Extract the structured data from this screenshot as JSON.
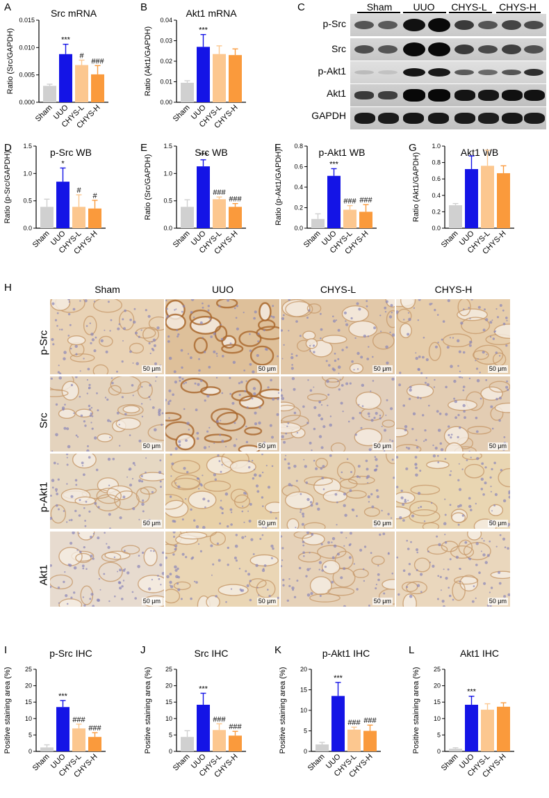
{
  "colors": {
    "Sham": "#d0d0d0",
    "UUO": "#1414e6",
    "CHYS-L": "#fcc78f",
    "CHYS-H": "#fa9a3c"
  },
  "panels": {
    "A": "A",
    "B": "B",
    "C": "C",
    "D": "D",
    "E": "E",
    "F": "F",
    "G": "G",
    "H": "H",
    "I": "I",
    "J": "J",
    "K": "K",
    "L": "L"
  },
  "blot": {
    "groups": [
      "Sham",
      "UUO",
      "CHYS-L",
      "CHYS-H"
    ],
    "rows": [
      "p-Src",
      "Src",
      "p-Akt1",
      "Akt1",
      "GAPDH"
    ]
  },
  "ihc": {
    "columns": [
      "Sham",
      "UUO",
      "CHYS-L",
      "CHYS-H"
    ],
    "rows": [
      "p-Src",
      "Src",
      "p-Akt1",
      "Akt1"
    ],
    "scale_label": "50 μm"
  },
  "chart_data": [
    {
      "id": "A",
      "type": "bar",
      "title": "Src mRNA",
      "ylabel": "Ratio (Src/GAPDH)",
      "categories": [
        "Sham",
        "UUO",
        "CHYS-L",
        "CHYS-H"
      ],
      "values": [
        0.003,
        0.0088,
        0.0068,
        0.0051
      ],
      "errors": [
        0.0003,
        0.0018,
        0.0009,
        0.0016
      ],
      "annotations": [
        "",
        "***",
        "#",
        "###"
      ],
      "ylim": [
        0,
        0.015
      ],
      "ticks": [
        0,
        0.005,
        0.01,
        0.015
      ],
      "tick_labels": [
        "0.000",
        "0.005",
        "0.010",
        "0.015"
      ]
    },
    {
      "id": "B",
      "type": "bar",
      "title": "Akt1 mRNA",
      "ylabel": "Ratio (Akt1/GAPDH)",
      "categories": [
        "Sham",
        "UUO",
        "CHYS-L",
        "CHYS-H"
      ],
      "values": [
        0.0095,
        0.027,
        0.0235,
        0.023
      ],
      "errors": [
        0.001,
        0.006,
        0.004,
        0.003
      ],
      "annotations": [
        "",
        "***",
        "",
        ""
      ],
      "ylim": [
        0,
        0.04
      ],
      "ticks": [
        0,
        0.01,
        0.02,
        0.03,
        0.04
      ],
      "tick_labels": [
        "0.00",
        "0.01",
        "0.02",
        "0.03",
        "0.04"
      ]
    },
    {
      "id": "D",
      "type": "bar",
      "title": "p-Src WB",
      "ylabel": "Ratio (p-Src/GAPDH)",
      "categories": [
        "Sham",
        "UUO",
        "CHYS-L",
        "CHYS-H"
      ],
      "values": [
        0.39,
        0.85,
        0.39,
        0.36
      ],
      "errors": [
        0.14,
        0.25,
        0.22,
        0.15
      ],
      "annotations": [
        "",
        "*",
        "#",
        "#"
      ],
      "ylim": [
        0,
        1.5
      ],
      "ticks": [
        0,
        0.5,
        1.0,
        1.5
      ],
      "tick_labels": [
        "0.0",
        "0.5",
        "1.0",
        "1.5"
      ]
    },
    {
      "id": "E",
      "type": "bar",
      "title": "Src WB",
      "ylabel": "Ratio (Src/GAPDH)",
      "categories": [
        "Sham",
        "UUO",
        "CHYS-L",
        "CHYS-H"
      ],
      "values": [
        0.39,
        1.13,
        0.53,
        0.39
      ],
      "errors": [
        0.13,
        0.12,
        0.04,
        0.06
      ],
      "annotations": [
        "",
        "***",
        "###",
        "###"
      ],
      "ylim": [
        0,
        1.5
      ],
      "ticks": [
        0,
        0.5,
        1.0,
        1.5
      ],
      "tick_labels": [
        "0.0",
        "0.5",
        "1.0",
        "1.5"
      ]
    },
    {
      "id": "F",
      "type": "bar",
      "title": "p-Akt1 WB",
      "ylabel": "Ratio (p-Akt1/GAPDH)",
      "categories": [
        "Sham",
        "UUO",
        "CHYS-L",
        "CHYS-H"
      ],
      "values": [
        0.09,
        0.51,
        0.18,
        0.16
      ],
      "errors": [
        0.05,
        0.07,
        0.04,
        0.07
      ],
      "annotations": [
        "",
        "***",
        "###",
        "###"
      ],
      "ylim": [
        0,
        0.8
      ],
      "ticks": [
        0,
        0.2,
        0.4,
        0.6,
        0.8
      ],
      "tick_labels": [
        "0.0",
        "0.2",
        "0.4",
        "0.6",
        "0.8"
      ]
    },
    {
      "id": "G",
      "type": "bar",
      "title": "Akt1 WB",
      "ylabel": "Ratio (Akt1/GAPDH)",
      "categories": [
        "Sham",
        "UUO",
        "CHYS-L",
        "CHYS-H"
      ],
      "values": [
        0.28,
        0.72,
        0.76,
        0.67
      ],
      "errors": [
        0.02,
        0.16,
        0.19,
        0.09
      ],
      "annotations": [
        "",
        "",
        "",
        ""
      ],
      "ylim": [
        0,
        1.0
      ],
      "ticks": [
        0,
        0.2,
        0.4,
        0.6,
        0.8,
        1.0
      ],
      "tick_labels": [
        "0.0",
        "0.2",
        "0.4",
        "0.6",
        "0.8",
        "1.0"
      ]
    },
    {
      "id": "I",
      "type": "bar",
      "title": "p-Src IHC",
      "ylabel": "Positive staining area (%)",
      "categories": [
        "Sham",
        "UUO",
        "CHYS-L",
        "CHYS-H"
      ],
      "values": [
        1.2,
        13.5,
        7.0,
        4.4
      ],
      "errors": [
        0.8,
        2.0,
        1.3,
        1.3
      ],
      "annotations": [
        "",
        "***",
        "###",
        "###"
      ],
      "ylim": [
        0,
        25
      ],
      "ticks": [
        0,
        5,
        10,
        15,
        20,
        25
      ],
      "tick_labels": [
        "0",
        "5",
        "10",
        "15",
        "20",
        "25"
      ]
    },
    {
      "id": "J",
      "type": "bar",
      "title": "Src IHC",
      "ylabel": "Positive staining area (%)",
      "categories": [
        "Sham",
        "UUO",
        "CHYS-L",
        "CHYS-H"
      ],
      "values": [
        4.4,
        14.2,
        6.5,
        4.8
      ],
      "errors": [
        1.9,
        3.5,
        1.9,
        1.3
      ],
      "annotations": [
        "",
        "***",
        "###",
        "###"
      ],
      "ylim": [
        0,
        25
      ],
      "ticks": [
        0,
        5,
        10,
        15,
        20,
        25
      ],
      "tick_labels": [
        "0",
        "5",
        "10",
        "15",
        "20",
        "25"
      ]
    },
    {
      "id": "K",
      "type": "bar",
      "title": "p-Akt1 IHC",
      "ylabel": "Positive staining area (%)",
      "categories": [
        "Sham",
        "UUO",
        "CHYS-L",
        "CHYS-H"
      ],
      "values": [
        1.7,
        13.5,
        5.3,
        5.0
      ],
      "errors": [
        0.5,
        3.3,
        0.6,
        1.4
      ],
      "annotations": [
        "",
        "***",
        "###",
        "###"
      ],
      "ylim": [
        0,
        20
      ],
      "ticks": [
        0,
        5,
        10,
        15,
        20
      ],
      "tick_labels": [
        "0",
        "5",
        "10",
        "15",
        "20"
      ]
    },
    {
      "id": "L",
      "type": "bar",
      "title": "Akt1 IHC",
      "ylabel": "Positive staining area (%)",
      "categories": [
        "Sham",
        "UUO",
        "CHYS-L",
        "CHYS-H"
      ],
      "values": [
        0.8,
        14.2,
        12.7,
        13.6
      ],
      "errors": [
        0.3,
        2.6,
        1.8,
        1.2
      ],
      "annotations": [
        "",
        "***",
        "",
        ""
      ],
      "ylim": [
        0,
        25
      ],
      "ticks": [
        0,
        5,
        10,
        15,
        20,
        25
      ],
      "tick_labels": [
        "0",
        "5",
        "10",
        "15",
        "20",
        "25"
      ]
    }
  ]
}
